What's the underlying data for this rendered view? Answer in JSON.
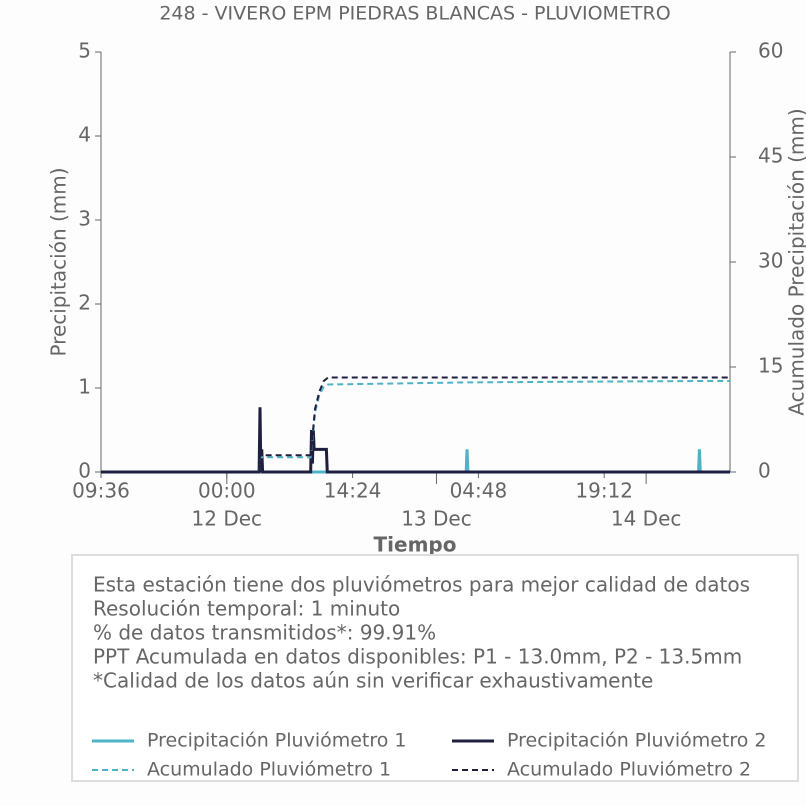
{
  "chart_data": {
    "type": "line",
    "title": "248 - VIVERO EPM PIEDRAS BLANCAS - PLUVIOMETRO",
    "xlabel": "Tiempo",
    "ylabel": "Precipitación (mm)",
    "y2label": "Acumulado Precipitación (mm)",
    "xlim": [
      0,
      72
    ],
    "xticks": [
      {
        "value": 0,
        "label": "09:36"
      },
      {
        "value": 14.4,
        "label": "00:00"
      },
      {
        "value": 28.8,
        "label": "14:24"
      },
      {
        "value": 43.2,
        "label": "04:48"
      },
      {
        "value": 57.6,
        "label": "19:12"
      }
    ],
    "date_ticks": [
      {
        "value": 14.4,
        "label": "12 Dec"
      },
      {
        "value": 38.4,
        "label": "13 Dec"
      },
      {
        "value": 62.4,
        "label": "14 Dec"
      }
    ],
    "ylim": [
      0,
      5
    ],
    "yticks": [
      0,
      1,
      2,
      3,
      4,
      5
    ],
    "y2lim": [
      0,
      60
    ],
    "y2ticks": [
      0,
      15,
      30,
      45,
      60
    ],
    "annotations": [
      "Esta estación tiene dos pluviómetros para mejor calidad de datos",
      "Resolución temporal: 1 minuto",
      "% de datos transmitidos*: 99.91%",
      "PPT Acumulada en datos disponibles: P1 - 13.0mm, P2 - 13.5mm",
      "*Calidad de los datos aún sin verificar exhaustivamente"
    ],
    "series": [
      {
        "name": "Precipitación Pluviómetro 1",
        "color": "#4fb3c8",
        "dashed": false,
        "x": [
          0,
          41.8,
          41.9,
          42.0,
          68.4,
          68.5,
          68.6,
          72
        ],
        "values": [
          0,
          0,
          0.27,
          0,
          0,
          0.27,
          0,
          0
        ]
      },
      {
        "name": "Precipitación Pluviómetro 2",
        "color": "#1f1f40",
        "dashed": false,
        "x": [
          0,
          18.1,
          18.2,
          18.3,
          18.4,
          18.5,
          24.0,
          24.1,
          24.2,
          24.3,
          24.4,
          24.6,
          24.8,
          25.0,
          25.4,
          25.8,
          25.9,
          72
        ],
        "values": [
          0,
          0,
          0.77,
          0,
          0.27,
          0,
          0,
          0.5,
          0.1,
          0.5,
          0.27,
          0.27,
          0.27,
          0.27,
          0.27,
          0.27,
          0,
          0
        ]
      },
      {
        "name": "Acumulado Pluviómetro 1",
        "color": "#4fb3c8",
        "dashed": true,
        "axis": "y2",
        "x": [
          0,
          18.1,
          18.2,
          24.0,
          24.2,
          24.5,
          25,
          25.5,
          26,
          41.9,
          68.5,
          72
        ],
        "values": [
          0,
          0,
          2.1,
          2.1,
          4.5,
          8.5,
          11,
          12.2,
          12.5,
          12.8,
          13.0,
          13.0
        ]
      },
      {
        "name": "Acumulado Pluviómetro 2",
        "color": "#1f1f40",
        "dashed": true,
        "axis": "y2",
        "x": [
          0,
          18.1,
          18.2,
          18.5,
          24.0,
          24.2,
          24.5,
          25,
          25.5,
          26,
          72
        ],
        "values": [
          0,
          0,
          2.3,
          2.4,
          2.4,
          5,
          9,
          11.5,
          13,
          13.5,
          13.5
        ]
      }
    ]
  }
}
